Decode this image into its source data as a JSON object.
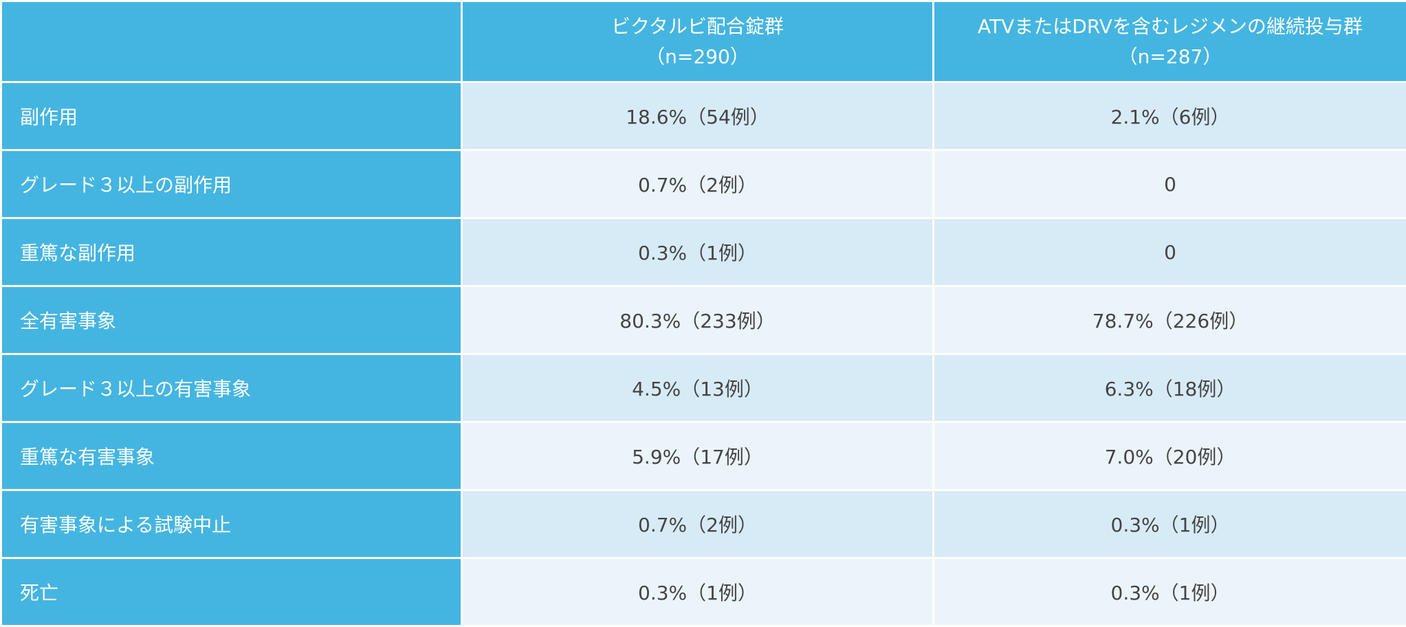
{
  "table": {
    "header": {
      "corner": "",
      "col_a": {
        "line1": "ビクタルビ配合錠群",
        "line2": "（n=290）"
      },
      "col_b": {
        "line1": "ATVまたはDRVを含むレジメンの継続投与群",
        "line2": "（n=287）"
      }
    },
    "rows": [
      {
        "label": "副作用",
        "a": "18.6%（54例）",
        "b": "2.1%（6例）"
      },
      {
        "label": "グレード３以上の副作用",
        "a": "0.7%（2例）",
        "b": "0"
      },
      {
        "label": "重篤な副作用",
        "a": "0.3%（1例）",
        "b": "0"
      },
      {
        "label": "全有害事象",
        "a": "80.3%（233例）",
        "b": "78.7%（226例）"
      },
      {
        "label": "グレード３以上の有害事象",
        "a": "4.5%（13例）",
        "b": "6.3%（18例）"
      },
      {
        "label": "重篤な有害事象",
        "a": "5.9%（17例）",
        "b": "7.0%（20例）"
      },
      {
        "label": "有害事象による試験中止",
        "a": "0.7%（2例）",
        "b": "0.3%（1例）"
      },
      {
        "label": "死亡",
        "a": "0.3%（1例）",
        "b": "0.3%（1例）"
      }
    ],
    "colors": {
      "header_bg": "#44b5e1",
      "row_odd_bg": "#d7ebf7",
      "row_even_bg": "#ecf4fb",
      "text_light": "#ffffff",
      "text_dark": "#444444"
    }
  }
}
